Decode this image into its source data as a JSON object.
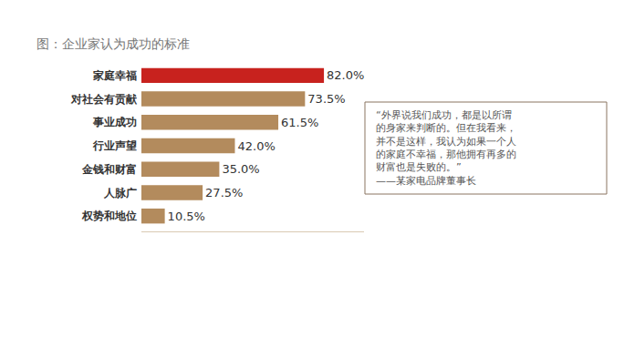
{
  "chart_data": {
    "type": "bar",
    "title": "图：企业家认为成功的标准",
    "orientation": "horizontal",
    "categories": [
      "家庭幸福",
      "对社会有贡献",
      "事业成功",
      "行业声望",
      "金钱和财富",
      "人脉广",
      "权势和地位"
    ],
    "values": [
      82.0,
      73.5,
      61.5,
      42.0,
      35.0,
      27.5,
      10.5
    ],
    "value_labels": [
      "82.0%",
      "73.5%",
      "61.5%",
      "42.0%",
      "35.0%",
      "27.5%",
      "10.5%"
    ],
    "colors": [
      "#c8221e",
      "#b38b5d",
      "#b38b5d",
      "#b38b5d",
      "#b38b5d",
      "#b38b5d",
      "#b38b5d"
    ],
    "data_labels": true,
    "tick_labels": "y",
    "grid": false,
    "xlim": [
      0,
      100
    ],
    "annotations": [
      {
        "text": [
          "“外界说我们成功，都是以所谓",
          "的身家来判断的。但在我看来，",
          "并不是这样，我认为如果一个人",
          "的家庭不幸福，那他拥有再多的",
          "财富也是失败的。”",
          "——某家电品牌董事长"
        ]
      }
    ]
  }
}
